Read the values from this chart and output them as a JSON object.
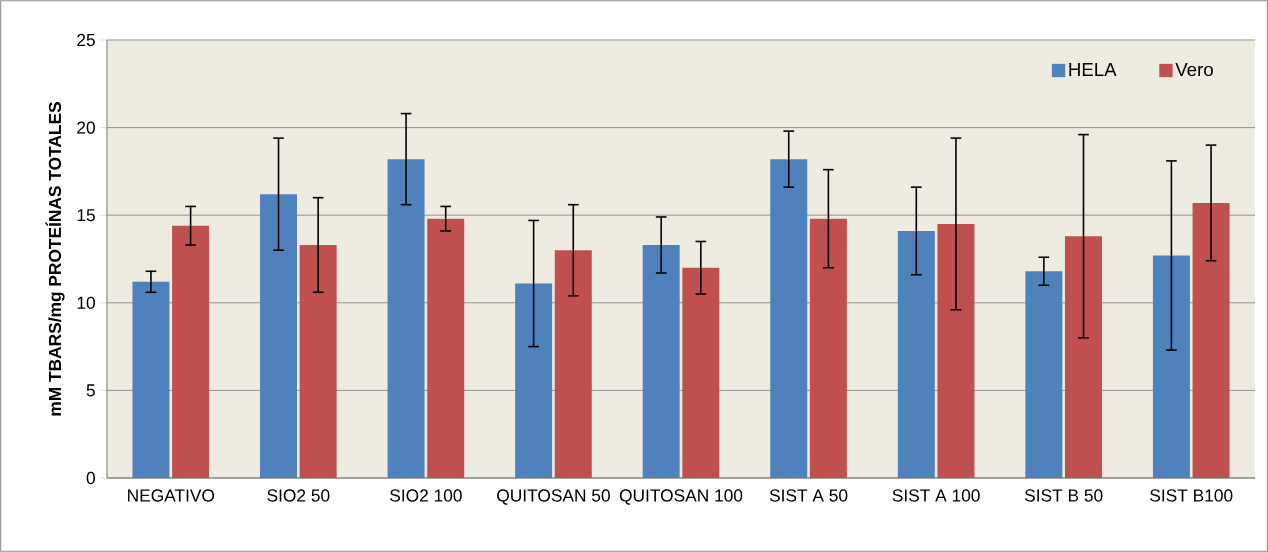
{
  "chart_data": {
    "type": "bar",
    "ylabel": "mM TBARS/mg PROTEÍNAS TOTALES",
    "categories": [
      "NEGATIVO",
      "SIO2 50",
      "SIO2 100",
      "QUITOSAN 50",
      "QUITOSAN 100",
      "SIST A 50",
      "SIST A 100",
      "SIST B 50",
      "SIST B100"
    ],
    "series": [
      {
        "name": "HELA",
        "color": "#4f81bd",
        "values": [
          11.2,
          16.2,
          18.2,
          11.1,
          13.3,
          18.2,
          14.1,
          11.8,
          12.7
        ],
        "errors": [
          0.6,
          3.2,
          2.6,
          3.6,
          1.6,
          1.6,
          2.5,
          0.8,
          5.4
        ]
      },
      {
        "name": "Vero",
        "color": "#c0504d",
        "values": [
          14.4,
          13.3,
          14.8,
          13.0,
          12.0,
          14.8,
          14.5,
          13.8,
          15.7
        ],
        "errors": [
          1.1,
          2.7,
          0.7,
          2.6,
          1.5,
          2.8,
          4.9,
          5.8,
          3.3
        ]
      }
    ],
    "ylim": [
      0,
      25
    ],
    "yticks": [
      0,
      5,
      10,
      15,
      20,
      25
    ],
    "grid": "y",
    "legend": "top right"
  }
}
